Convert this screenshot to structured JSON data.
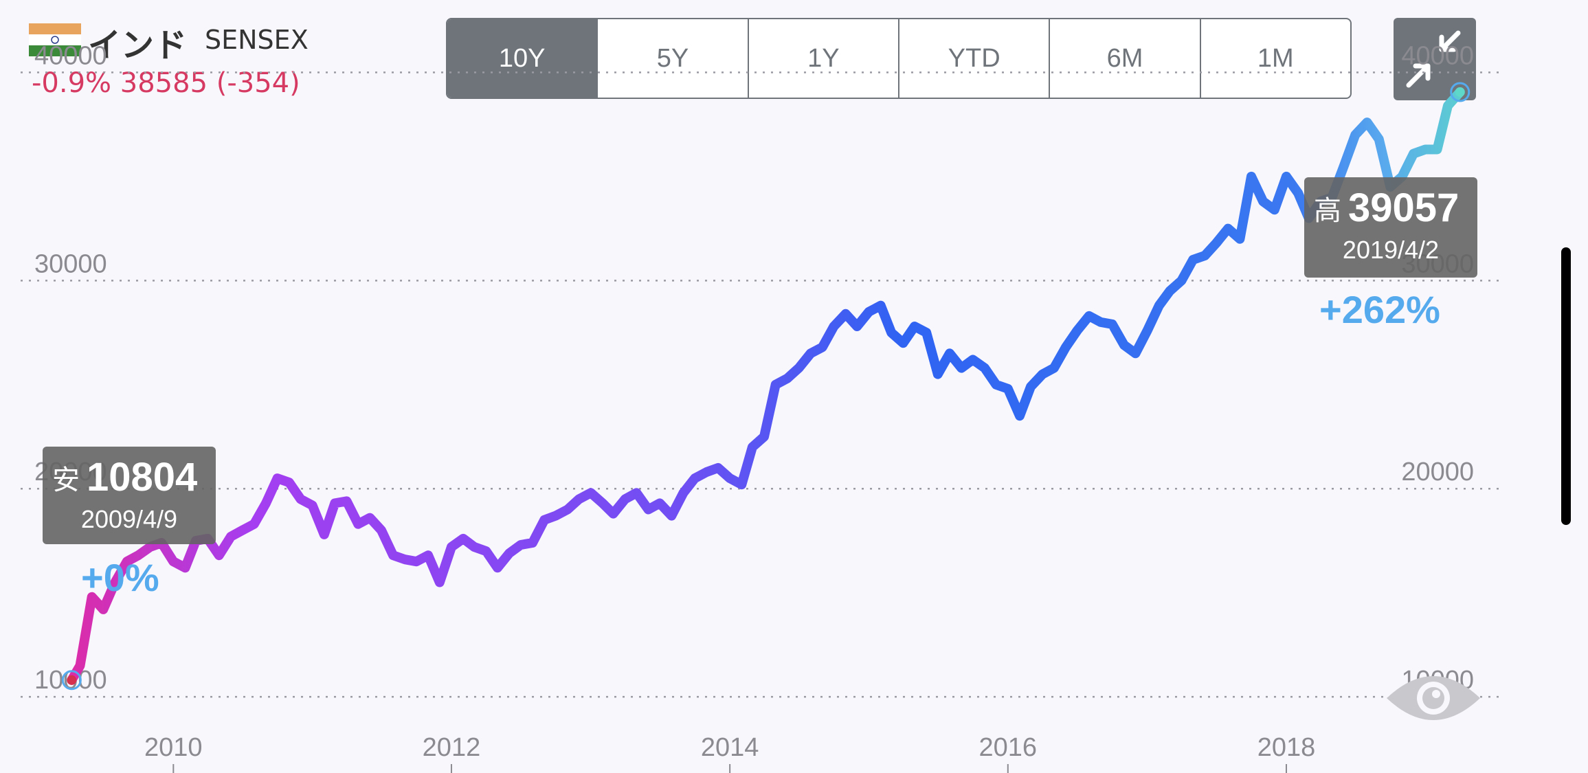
{
  "header": {
    "country": "インド",
    "index_name": "SENSEX",
    "change_text": "-0.9% 38585 (-354)"
  },
  "periods": [
    "10Y",
    "5Y",
    "1Y",
    "YTD",
    "6M",
    "1M"
  ],
  "active_period": "10Y",
  "icons": {
    "flag": "india-flag-icon",
    "collapse": "collapse-arrows-icon",
    "eye": "eye-icon"
  },
  "colors": {
    "negative": "#d63a63",
    "positive_label": "#55aaee",
    "button_gray": "#6e747a",
    "low_point": "#d6304f",
    "high_point": "#5ed8c8"
  },
  "chart_data": {
    "type": "line",
    "title": "",
    "xlabel": "",
    "ylabel": "",
    "ylim": [
      7000,
      41500
    ],
    "xlim": [
      "2009-01-01",
      "2019-06-01"
    ],
    "y_ticks": [
      10000,
      20000,
      30000,
      40000
    ],
    "y_tick_labels": [
      "10000",
      "20000",
      "30000",
      "40000"
    ],
    "x_ticks": [
      "2010-01-01",
      "2012-01-01",
      "2014-01-01",
      "2016-01-01",
      "2018-01-01"
    ],
    "x_tick_labels": [
      "2010",
      "2012",
      "2014",
      "2016",
      "2018"
    ],
    "grid": "horizontal dotted",
    "series": [
      {
        "x": [
          "2009-04-09",
          "2009-05-01",
          "2009-06-01",
          "2009-07-01",
          "2009-08-01",
          "2009-09-01",
          "2009-10-01",
          "2009-11-01",
          "2009-12-01",
          "2010-01-01",
          "2010-02-01",
          "2010-03-01",
          "2010-04-01",
          "2010-05-01",
          "2010-06-01",
          "2010-07-01",
          "2010-08-01",
          "2010-09-01",
          "2010-10-01",
          "2010-11-01",
          "2010-12-01",
          "2011-01-01",
          "2011-02-01",
          "2011-03-01",
          "2011-04-01",
          "2011-05-01",
          "2011-06-01",
          "2011-07-01",
          "2011-08-01",
          "2011-09-01",
          "2011-10-01",
          "2011-11-01",
          "2011-12-01",
          "2012-01-01",
          "2012-02-01",
          "2012-03-01",
          "2012-04-01",
          "2012-05-01",
          "2012-06-01",
          "2012-07-01",
          "2012-08-01",
          "2012-09-01",
          "2012-10-01",
          "2012-11-01",
          "2012-12-01",
          "2013-01-01",
          "2013-02-01",
          "2013-03-01",
          "2013-04-01",
          "2013-05-01",
          "2013-06-01",
          "2013-07-01",
          "2013-08-01",
          "2013-09-01",
          "2013-10-01",
          "2013-11-01",
          "2013-12-01",
          "2014-01-01",
          "2014-02-01",
          "2014-03-01",
          "2014-04-01",
          "2014-05-01",
          "2014-06-01",
          "2014-07-01",
          "2014-08-01",
          "2014-09-01",
          "2014-10-01",
          "2014-11-01",
          "2014-12-01",
          "2015-01-01",
          "2015-02-01",
          "2015-03-01",
          "2015-04-01",
          "2015-05-01",
          "2015-06-01",
          "2015-07-01",
          "2015-08-01",
          "2015-09-01",
          "2015-10-01",
          "2015-11-01",
          "2015-12-01",
          "2016-01-01",
          "2016-02-01",
          "2016-03-01",
          "2016-04-01",
          "2016-05-01",
          "2016-06-01",
          "2016-07-01",
          "2016-08-01",
          "2016-09-01",
          "2016-10-01",
          "2016-11-01",
          "2016-12-01",
          "2017-01-01",
          "2017-02-01",
          "2017-03-01",
          "2017-04-01",
          "2017-05-01",
          "2017-06-01",
          "2017-07-01",
          "2017-08-01",
          "2017-09-01",
          "2017-10-01",
          "2017-11-01",
          "2017-12-01",
          "2018-01-01",
          "2018-02-01",
          "2018-03-01",
          "2018-04-01",
          "2018-05-01",
          "2018-06-01",
          "2018-07-01",
          "2018-08-01",
          "2018-09-01",
          "2018-10-01",
          "2018-11-01",
          "2018-12-01",
          "2019-01-01",
          "2019-02-01",
          "2019-03-01",
          "2019-04-02"
        ],
        "values": [
          10804,
          11500,
          14800,
          14200,
          15500,
          16500,
          16800,
          17200,
          17400,
          16500,
          16200,
          17500,
          17600,
          16800,
          17700,
          18000,
          18300,
          19300,
          20500,
          20300,
          19500,
          19200,
          17800,
          19300,
          19400,
          18300,
          18600,
          18000,
          16800,
          16600,
          16500,
          16800,
          15500,
          17200,
          17600,
          17200,
          17000,
          16200,
          16900,
          17300,
          17400,
          18500,
          18700,
          19000,
          19500,
          19800,
          19300,
          18800,
          19500,
          19800,
          19000,
          19300,
          18700,
          19800,
          20500,
          20800,
          21000,
          20500,
          20200,
          22000,
          22500,
          25000,
          25300,
          25800,
          26500,
          26800,
          27800,
          28400,
          27800,
          28500,
          28800,
          27500,
          27000,
          27800,
          27500,
          25500,
          26500,
          25800,
          26200,
          25800,
          25000,
          24800,
          23500,
          24900,
          25500,
          25800,
          26800,
          27600,
          28300,
          28000,
          27900,
          26900,
          26500,
          27600,
          28800,
          29500,
          30000,
          31000,
          31200,
          31800,
          32500,
          32000,
          35000,
          33800,
          33400,
          35000,
          34200,
          33000,
          33800,
          34000,
          35500,
          37000,
          37600,
          36800,
          34500,
          35000,
          36100,
          36300,
          36300,
          38400,
          39057
        ]
      }
    ],
    "annotations": {
      "low": {
        "prefix": "安",
        "value": "10804",
        "date": "2009/4/9",
        "change": "+0%"
      },
      "high": {
        "prefix": "高",
        "value": "39057",
        "date": "2019/4/2",
        "change": "+262%"
      }
    }
  }
}
